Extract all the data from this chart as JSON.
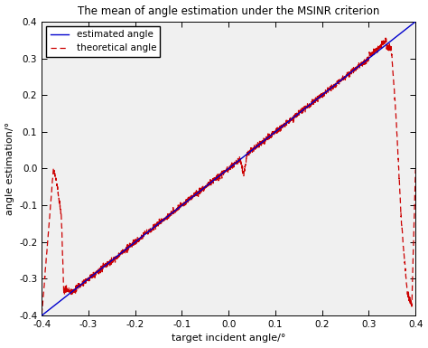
{
  "title": "The mean of angle estimation under the MSINR criterion",
  "xlabel": "target incident angle/°",
  "ylabel": "angle estimation/°",
  "xlim": [
    -0.4,
    0.4
  ],
  "ylim": [
    -0.4,
    0.4
  ],
  "xticks": [
    -0.4,
    -0.3,
    -0.2,
    -0.1,
    0.0,
    0.1,
    0.2,
    0.3,
    0.4
  ],
  "yticks": [
    -0.4,
    -0.3,
    -0.2,
    -0.1,
    0.0,
    0.1,
    0.2,
    0.3,
    0.4
  ],
  "estimated_color": "#0000cd",
  "theoretical_color": "#cc0000",
  "legend_labels": [
    "estimated angle",
    "theoretical angle"
  ],
  "background_color": "#ffffff",
  "axes_bg_color": "#f0f0f0"
}
